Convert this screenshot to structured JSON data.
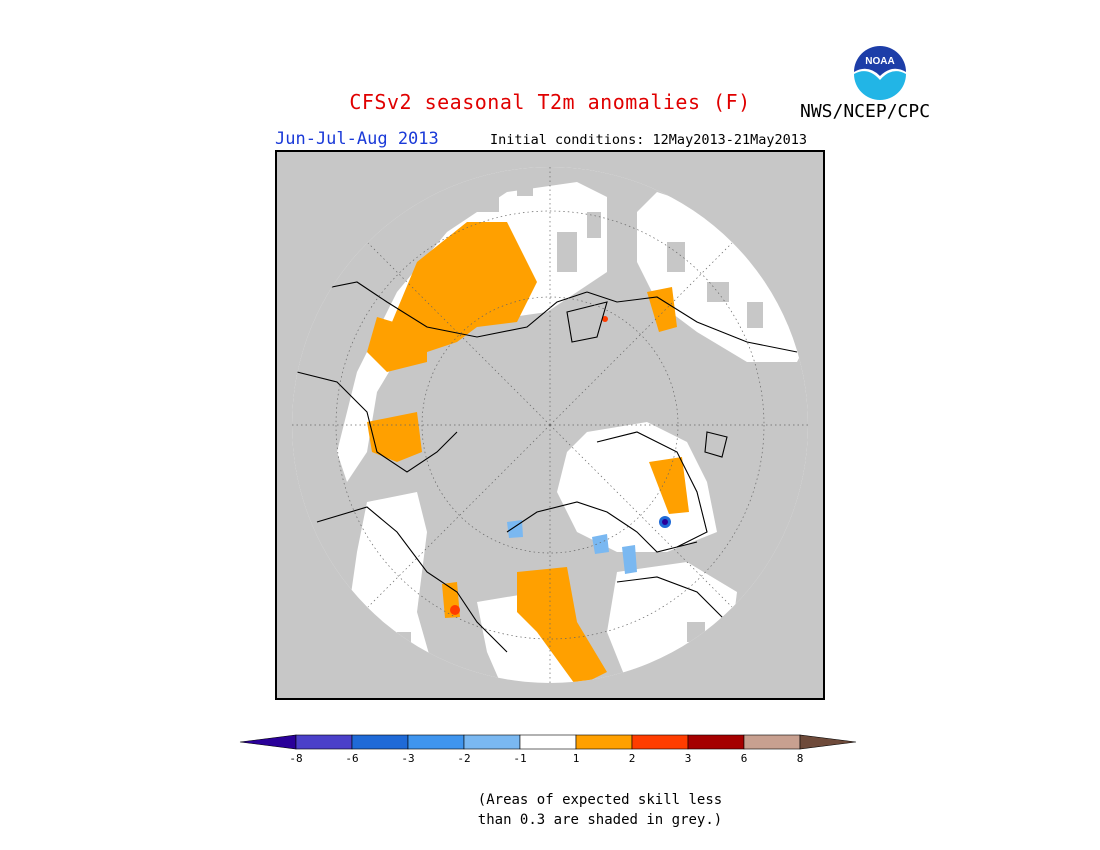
{
  "header": {
    "title": "CFSv2 seasonal T2m anomalies (F)",
    "agency": "NWS/NCEP/CPC",
    "logo_text": "NOAA",
    "period": "Jun-Jul-Aug 2013",
    "initial_conditions": "Initial conditions: 12May2013-21May2013"
  },
  "colors": {
    "skill_grey": "#c7c7c7",
    "neutral": "#ffffff",
    "title_red": "#e00000",
    "period_blue": "#1a3ad8"
  },
  "legend": {
    "bins": [
      {
        "range": "< -8",
        "color": "#2a0099"
      },
      {
        "range": "-8 to -6",
        "color": "#4b40c9"
      },
      {
        "range": "-6 to -3",
        "color": "#1f6ad7"
      },
      {
        "range": "-3 to -2",
        "color": "#3f95ee"
      },
      {
        "range": "-2 to -1",
        "color": "#7ab8f1"
      },
      {
        "range": "-1 to 1",
        "color": "#ffffff"
      },
      {
        "range": "1 to 2",
        "color": "#ffa000"
      },
      {
        "range": "2 to 3",
        "color": "#ff3d00"
      },
      {
        "range": "3 to 6",
        "color": "#a50000"
      },
      {
        "range": "6 to 8",
        "color": "#c8a090"
      },
      {
        "range": "> 8",
        "color": "#6e4a3a"
      }
    ],
    "tick_labels": [
      "-8",
      "-6",
      "-3",
      "-2",
      "-1",
      "1",
      "2",
      "3",
      "6",
      "8"
    ]
  },
  "note": {
    "line1": "(Areas of expected skill less",
    "line2": "than 0.3 are shaded in grey.)"
  }
}
